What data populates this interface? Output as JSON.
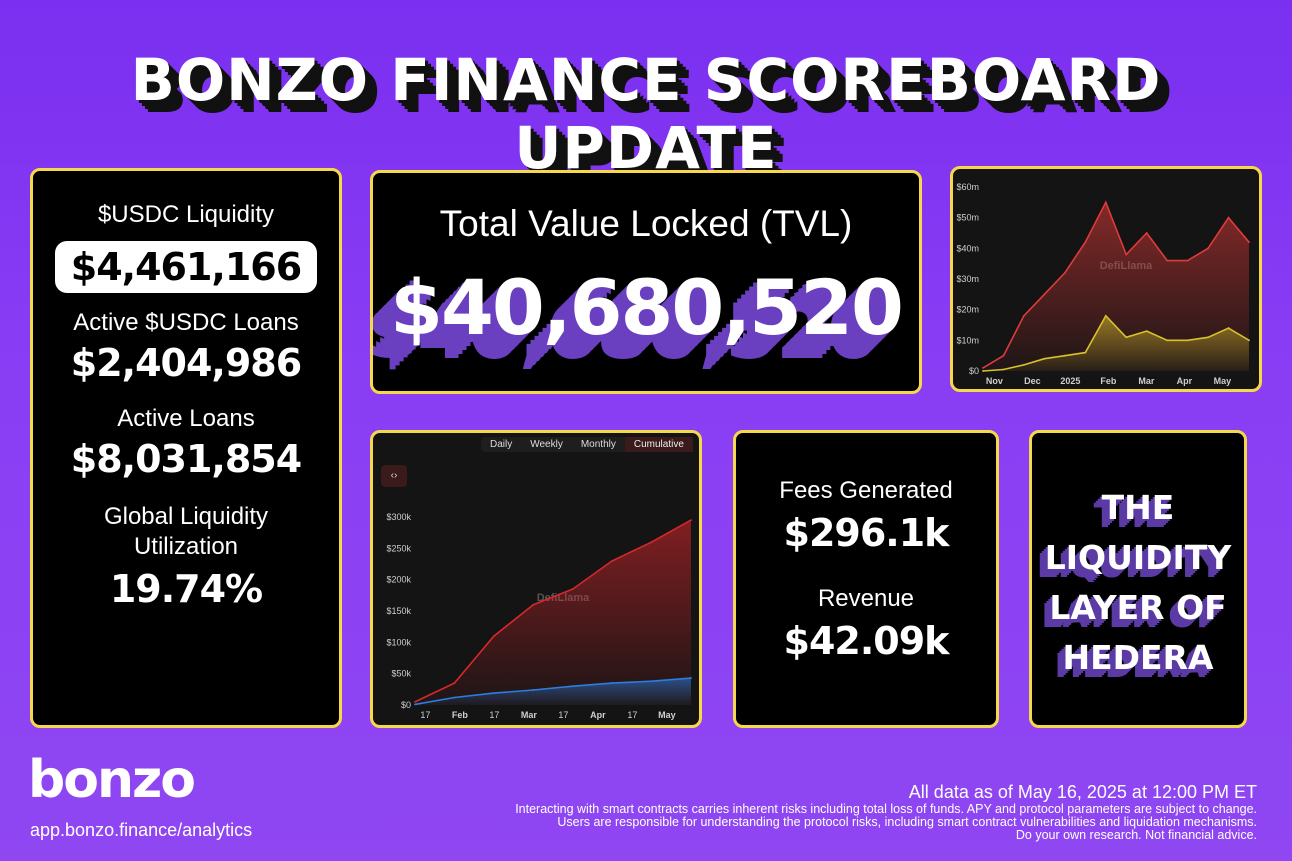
{
  "title": "BONZO FINANCE SCOREBOARD UPDATE",
  "liquidity_panel": {
    "usdc_liquidity_label": "$USDC Liquidity",
    "usdc_liquidity_value": "$4,461,166",
    "active_usdc_loans_label": "Active $USDC Loans",
    "active_usdc_loans_value": "$2,404,986",
    "active_loans_label": "Active Loans",
    "active_loans_value": "$8,031,854",
    "utilization_label_1": "Global Liquidity",
    "utilization_label_2": "Utilization",
    "utilization_value": "19.74%"
  },
  "tvl_panel": {
    "label": "Total Value Locked (TVL)",
    "value": "$40,680,520"
  },
  "fees_panel": {
    "fees_label": "Fees Generated",
    "fees_value": "$296.1k",
    "revenue_label": "Revenue",
    "revenue_value": "$42.09k"
  },
  "slogan": {
    "line1": "THE",
    "line2": "LIQUIDITY",
    "line3": "LAYER OF",
    "line4": "HEDERA"
  },
  "chart_data": [
    {
      "type": "area",
      "watermark": "DefiLlama",
      "x_tick_labels": [
        "Nov",
        "Dec",
        "2025",
        "Feb",
        "Mar",
        "Apr",
        "May"
      ],
      "y_tick_labels": [
        "$0",
        "$10m",
        "$20m",
        "$30m",
        "$40m",
        "$50m",
        "$60m"
      ],
      "ylim": [
        0,
        60
      ],
      "x": [
        "Nov",
        "Nov",
        "Dec",
        "Dec",
        "2025",
        "2025",
        "Feb",
        "Feb",
        "Mar",
        "Mar",
        "Apr",
        "Apr",
        "May",
        "May"
      ],
      "series": [
        {
          "values": [
            1,
            5,
            18,
            25,
            32,
            42,
            55,
            38,
            45,
            36,
            36,
            40,
            50,
            42
          ]
        },
        {
          "values": [
            0,
            0.5,
            2,
            4,
            5,
            6,
            18,
            11,
            13,
            10,
            10,
            11,
            14,
            10
          ]
        }
      ],
      "colors": [
        "#e13a3a",
        "#d8c22a"
      ]
    },
    {
      "type": "area",
      "watermark": "DefiLlama",
      "tabs": [
        "Daily",
        "Weekly",
        "Monthly",
        "Cumulative"
      ],
      "active_tab": "Cumulative",
      "embed_label": "‹›",
      "x_tick_labels": [
        "17",
        "Feb",
        "17",
        "Mar",
        "17",
        "Apr",
        "17",
        "May"
      ],
      "y_tick_labels": [
        "$0",
        "$50k",
        "$100k",
        "$150k",
        "$200k",
        "$250k",
        "$300k"
      ],
      "ylim": [
        0,
        300
      ],
      "x": [
        "17",
        "Feb",
        "17",
        "Mar",
        "17",
        "Apr",
        "17",
        "May"
      ],
      "series": [
        {
          "values": [
            5,
            35,
            110,
            160,
            185,
            230,
            260,
            295
          ]
        },
        {
          "values": [
            1,
            12,
            19,
            24,
            30,
            35,
            38,
            43
          ]
        }
      ],
      "colors": [
        "#d9272d",
        "#2b7de0"
      ]
    }
  ],
  "footer": {
    "logo": "bonzo",
    "site": "app.bonzo.finance/analytics",
    "as_of": "All data as of May 16, 2025 at 12:00 PM ET",
    "disclaimer_1": "Interacting with smart contracts carries inherent risks including total loss of funds. APY and protocol parameters are subject to change.",
    "disclaimer_2": "Users are responsible for understanding the protocol risks, including smart contract vulnerabilities and liquidation mechanisms.",
    "disclaimer_3": "Do your own research. Not financial advice."
  }
}
